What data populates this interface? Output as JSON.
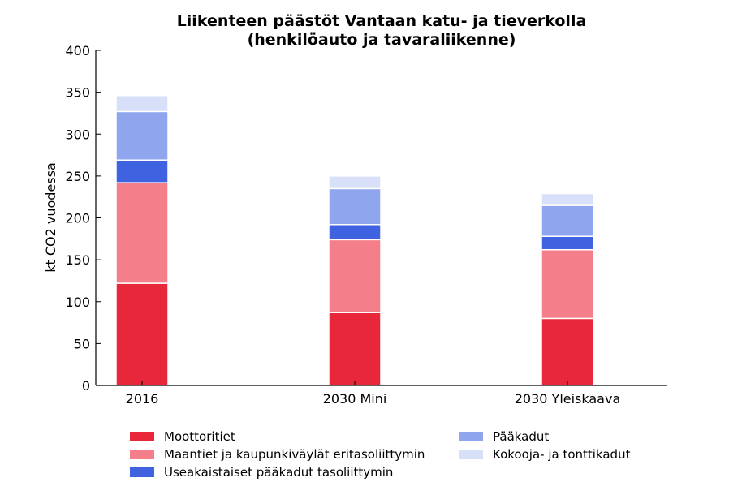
{
  "chart_data": {
    "type": "bar",
    "stacked": true,
    "title": "Liikenteen päästöt Vantaan katu- ja tieverkolla",
    "subtitle": "(henkilöauto ja tavaraliikenne)",
    "xlabel": "",
    "ylabel": "kt CO2 vuodessa",
    "ylim": [
      0,
      400
    ],
    "yticks": [
      0,
      50,
      100,
      150,
      200,
      250,
      300,
      350,
      400
    ],
    "grid": false,
    "legend_position": "bottom",
    "categories": [
      "2016",
      "2030 Mini",
      "2030 Yleiskaava"
    ],
    "series": [
      {
        "name": "Moottoritiet",
        "color": "#e8283a",
        "values": [
          122,
          87,
          80
        ]
      },
      {
        "name": "Maantiet ja kaupunkiväylät eritasoliittymin",
        "color": "#f47f8a",
        "values": [
          120,
          87,
          82
        ]
      },
      {
        "name": "Useakaistaiset pääkadut tasoliittymin",
        "color": "#3f63e0",
        "values": [
          27,
          18,
          16
        ]
      },
      {
        "name": "Pääkadut",
        "color": "#8fa6ef",
        "values": [
          58,
          43,
          37
        ]
      },
      {
        "name": "Kokooja- ja tonttikadut",
        "color": "#d8dff8",
        "values": [
          19,
          15,
          14
        ]
      }
    ]
  }
}
